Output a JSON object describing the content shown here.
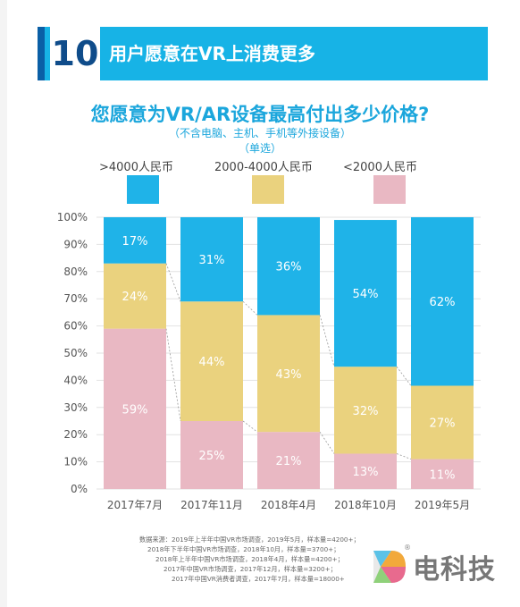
{
  "header": {
    "number": "10",
    "title": "用户愿意在VR上消费更多"
  },
  "colors": {
    "banner": "#17b3e6",
    "high": "#1fb3e8",
    "mid": "#ead27e",
    "low": "#e9b8c3"
  },
  "chart_data": {
    "type": "bar",
    "stacked": true,
    "title": "您愿意为VR/AR设备最高付出多少价格?",
    "subtitle": "（不含电脑、主机、手机等外接设备）",
    "note": "（单选）",
    "categories": [
      "2017年7月",
      "2017年11月",
      "2018年4月",
      "2018年10月",
      "2019年5月"
    ],
    "series": [
      {
        "name": "<2000人民币",
        "values": [
          59,
          25,
          21,
          13,
          11
        ],
        "labels": [
          "59%",
          "25%",
          "21%",
          "13%",
          "11%"
        ]
      },
      {
        "name": "2000-4000人民币",
        "values": [
          24,
          44,
          43,
          32,
          27
        ],
        "labels": [
          "24%",
          "44%",
          "43%",
          "32%",
          "27%"
        ]
      },
      {
        "name": ">4000人民币",
        "values": [
          17,
          31,
          36,
          54,
          62
        ],
        "labels": [
          "17%",
          "31%",
          "36%",
          "54%",
          "62%"
        ]
      }
    ],
    "legend": [
      ">4000人民币",
      "2000-4000人民币",
      "<2000人民币"
    ],
    "legend_placement": "top",
    "ylim": [
      0,
      100
    ],
    "yticks": [
      "0%",
      "10%",
      "20%",
      "30%",
      "40%",
      "50%",
      "60%",
      "70%",
      "80%",
      "90%",
      "100%"
    ],
    "grid": true,
    "connector_lines": "dashed"
  },
  "source": {
    "lines": [
      "数据来源：2019年上半年中国VR市场调查，2019年5月，样本量=4200+；",
      "2018年下半年中国VR市场调查，2018年10月，样本量=3700+；",
      "2018年上半年中国VR市场调查，2018年4月，样本量=4200+；",
      "2017年中国VR市场调查，2017年12月，样本量=3200+；",
      "2017年中国VR消费者调查，2017年7月，样本量=18000+"
    ]
  },
  "watermark": {
    "text": "电科技",
    "registered": "®",
    "logo_icon": "dian-tech-logo-icon"
  }
}
